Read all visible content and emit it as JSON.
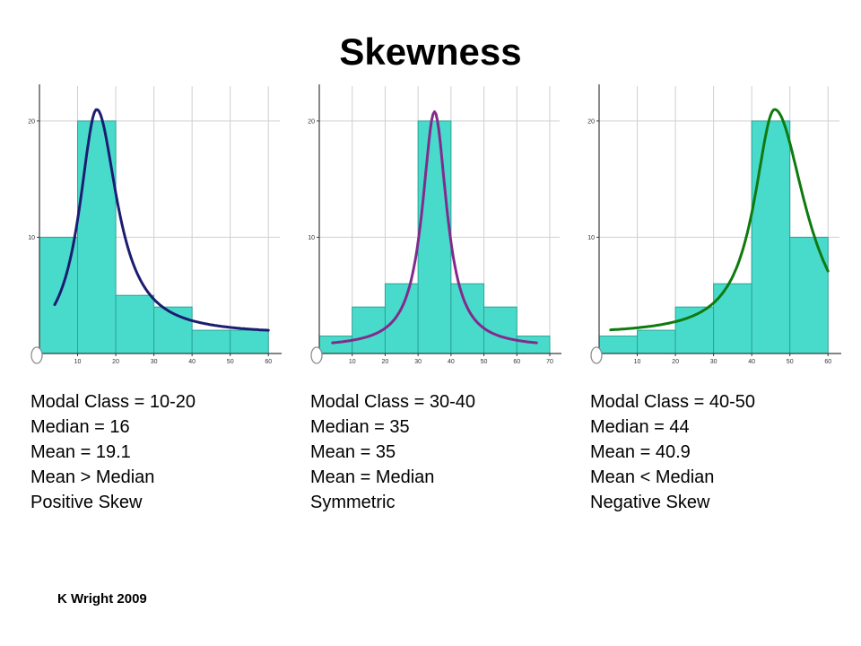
{
  "slide": {
    "title": "Skewness",
    "footer": "K Wright 2009"
  },
  "chart_data": [
    {
      "type": "bar",
      "subtype": "histogram-with-density-curve",
      "name": "positive-skew",
      "bin_width": 10,
      "bin_starts": [
        0,
        10,
        20,
        30,
        40,
        50
      ],
      "values": [
        10,
        20,
        5,
        4,
        2,
        2
      ],
      "x_ticks": [
        10,
        20,
        30,
        40,
        50,
        60
      ],
      "y_ticks": [
        10,
        20
      ],
      "xlim": [
        0,
        63
      ],
      "ylim": [
        0,
        23
      ],
      "grid": true,
      "bar_color": "#48DBCB",
      "bar_border": "#2BA396",
      "curve": {
        "color": "#1C1C70",
        "peak_x": 15,
        "peak_y": 21,
        "gamma_left": 5.5,
        "gamma_right": 6.5,
        "tail_left": 0,
        "tail_right": 1.6,
        "x_min": 4,
        "x_max": 60
      },
      "stats": [
        "Modal Class = 10-20",
        "Median = 16",
        "Mean = 19.1",
        "Mean > Median",
        "Positive Skew"
      ]
    },
    {
      "type": "bar",
      "subtype": "histogram-with-density-curve",
      "name": "symmetric",
      "bin_width": 10,
      "bin_starts": [
        0,
        10,
        20,
        30,
        40,
        50,
        60
      ],
      "values": [
        1.5,
        4,
        6,
        20,
        6,
        4,
        1.5
      ],
      "x_ticks": [
        10,
        20,
        30,
        40,
        50,
        60,
        70
      ],
      "y_ticks": [
        10,
        20
      ],
      "xlim": [
        0,
        73
      ],
      "ylim": [
        0,
        23
      ],
      "grid": true,
      "bar_color": "#48DBCB",
      "bar_border": "#2BA396",
      "curve": {
        "color": "#822B8C",
        "peak_x": 35,
        "peak_y": 20.8,
        "gamma_left": 4.5,
        "gamma_right": 4.5,
        "tail_left": 0.5,
        "tail_right": 0.5,
        "x_min": 4,
        "x_max": 66
      },
      "stats": [
        "Modal Class = 30-40",
        "Median = 35",
        "Mean = 35",
        "Mean = Median",
        "Symmetric"
      ]
    },
    {
      "type": "bar",
      "subtype": "histogram-with-density-curve",
      "name": "negative-skew",
      "bin_width": 10,
      "bin_starts": [
        0,
        10,
        20,
        30,
        40,
        50
      ],
      "values": [
        1.5,
        2,
        4,
        6,
        20,
        10
      ],
      "x_ticks": [
        10,
        20,
        30,
        40,
        50,
        60
      ],
      "y_ticks": [
        10,
        20
      ],
      "xlim": [
        0,
        63
      ],
      "ylim": [
        0,
        23
      ],
      "grid": true,
      "bar_color": "#48DBCB",
      "bar_border": "#2BA396",
      "curve": {
        "color": "#0F7A0F",
        "peak_x": 46,
        "peak_y": 21,
        "gamma_left": 6.5,
        "gamma_right": 10,
        "tail_left": 1.6,
        "tail_right": 0,
        "x_min": 3,
        "x_max": 60
      },
      "stats": [
        "Modal Class = 40-50",
        "Median = 44",
        "Mean = 40.9",
        "Mean < Median",
        "Negative Skew"
      ]
    }
  ]
}
